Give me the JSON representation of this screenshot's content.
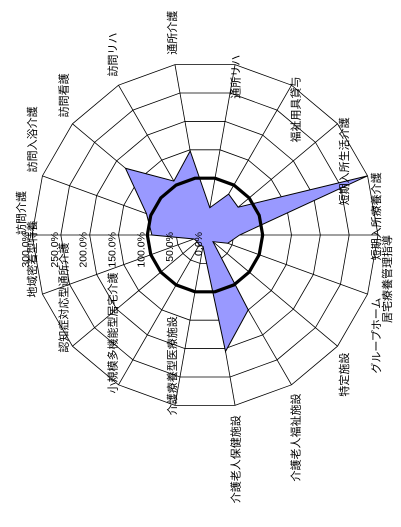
{
  "chart_data": {
    "type": "radar",
    "title": "",
    "categories": [
      "訪問介護",
      "訪問入浴介護",
      "訪問看護",
      "訪問リハ",
      "通所介護",
      "通所リハ",
      "福祉用具貸与",
      "短期入所生活介護",
      "短期入所療養介護",
      "居宅療養管理指導",
      "グループホーム",
      "特定施設",
      "介護老人福祉施設",
      "介護老人保健施設",
      "介護療養型医療施設",
      "小規模多機能型居宅介護",
      "認知症対応型通所介護",
      "地域密着型特養"
    ],
    "radial_ticks": [
      "0.0%",
      "50.0%",
      "100.0%",
      "150.0%",
      "200.0%",
      "250.0%",
      "300.0%"
    ],
    "rmax": 300,
    "series": [
      {
        "values": [
          92,
          108,
          180,
          108,
          148,
          48,
          82,
          75,
          320,
          60,
          42,
          18,
          150,
          205,
          20,
          20,
          18,
          20
        ]
      }
    ],
    "reference_line": 100,
    "colors": {
      "fill": "#9999ff",
      "stroke": "#000000",
      "grid": "#000000",
      "reference": "#000000"
    },
    "grid": true
  }
}
